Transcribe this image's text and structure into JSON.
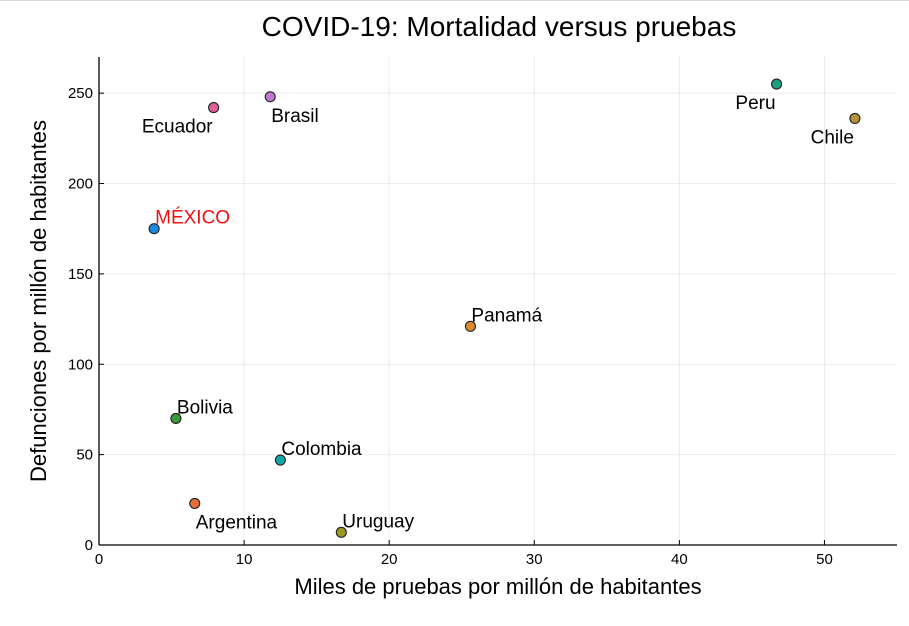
{
  "chart_data": {
    "type": "scatter",
    "title": "COVID-19: Mortalidad versus pruebas",
    "xlabel": "Miles de pruebas por millón de habitantes",
    "ylabel": "Defunciones por millón de habitantes",
    "xlim": [
      0,
      55
    ],
    "ylim": [
      0,
      270
    ],
    "xticks": [
      0,
      10,
      20,
      30,
      40,
      50
    ],
    "yticks": [
      0,
      50,
      100,
      150,
      200,
      250
    ],
    "grid": true,
    "legend": "none",
    "points": [
      {
        "label": "Ecuador",
        "x": 7.9,
        "y": 242,
        "color": "#e0609e",
        "label_color": "#000000",
        "label_pos": "below-left"
      },
      {
        "label": "Brasil",
        "x": 11.8,
        "y": 248,
        "color": "#c278cf",
        "label_color": "#000000",
        "label_pos": "below-right"
      },
      {
        "label": "Peru",
        "x": 46.7,
        "y": 255,
        "color": "#1a9e84",
        "label_color": "#000000",
        "label_pos": "below-left"
      },
      {
        "label": "Chile",
        "x": 52.1,
        "y": 236,
        "color": "#b8913a",
        "label_color": "#000000",
        "label_pos": "below-left"
      },
      {
        "label": "MÉXICO",
        "x": 3.8,
        "y": 175,
        "color": "#1e88e5",
        "label_color": "#ee1111",
        "label_pos": "above-right"
      },
      {
        "label": "Panamá",
        "x": 25.6,
        "y": 121,
        "color": "#dd8a2e",
        "label_color": "#000000",
        "label_pos": "above-right"
      },
      {
        "label": "Bolivia",
        "x": 5.3,
        "y": 70,
        "color": "#3a9a3a",
        "label_color": "#000000",
        "label_pos": "above-right"
      },
      {
        "label": "Colombia",
        "x": 12.5,
        "y": 47,
        "color": "#13a8a8",
        "label_color": "#000000",
        "label_pos": "above-right"
      },
      {
        "label": "Argentina",
        "x": 6.6,
        "y": 23,
        "color": "#e36e38",
        "label_color": "#000000",
        "label_pos": "below-right"
      },
      {
        "label": "Uruguay",
        "x": 16.7,
        "y": 7,
        "color": "#9a9a20",
        "label_color": "#000000",
        "label_pos": "above-right"
      }
    ]
  }
}
